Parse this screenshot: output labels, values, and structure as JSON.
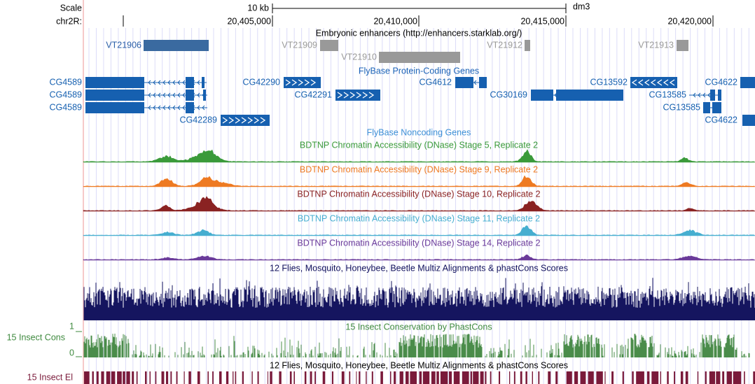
{
  "ruler": {
    "scale_label": "Scale",
    "scale_bar": "10 kb",
    "assembly": "dm3",
    "chrom": "chr2R:",
    "positions": [
      "20,405,000",
      "20,410,000",
      "20,415,000",
      "20,420,000"
    ]
  },
  "tracks": {
    "enhancers": {
      "title": "Embryonic enhancers (http://enhancers.starklab.org/)",
      "items": [
        "VT21906",
        "VT21909",
        "VT21910",
        "VT21912",
        "VT21913"
      ]
    },
    "genes": {
      "title": "FlyBase Protein-Coding Genes",
      "items": [
        "CG4589",
        "CG4589",
        "CG4589",
        "CG42289",
        "CG42290",
        "CG42291",
        "CG4612",
        "CG30169",
        "CG13592",
        "CG13585",
        "CG13585",
        "CG4622",
        "CG4622"
      ]
    },
    "noncoding": {
      "title": "FlyBase Noncoding Genes"
    },
    "dnase": [
      {
        "title": "BDTNP Chromatin Accessibility (DNase) Stage 5, Replicate 2"
      },
      {
        "title": "BDTNP Chromatin Accessibility (DNase) Stage 9, Replicate 2"
      },
      {
        "title": "BDTNP Chromatin Accessibility (DNase) Stage 10, Replicate 2"
      },
      {
        "title": "BDTNP Chromatin Accessibility (DNase) Stage 11, Replicate 2"
      },
      {
        "title": "BDTNP Chromatin Accessibility (DNase) Stage 14, Replicate 2"
      }
    ],
    "multiz": {
      "title": "12 Flies, Mosquito, Honeybee, Beetle Multiz Alignments & phastCons Scores"
    },
    "phastcons": {
      "title": "15 Insect Conservation by PhastCons",
      "side_label": "15 Insect Cons",
      "ymax": 1,
      "ymin": 0
    },
    "elements": {
      "title": "12 Flies, Mosquito, Honeybee, Beetle Multiz Alignments & phastCons Scores",
      "side_label": "15 Insect El"
    }
  }
}
